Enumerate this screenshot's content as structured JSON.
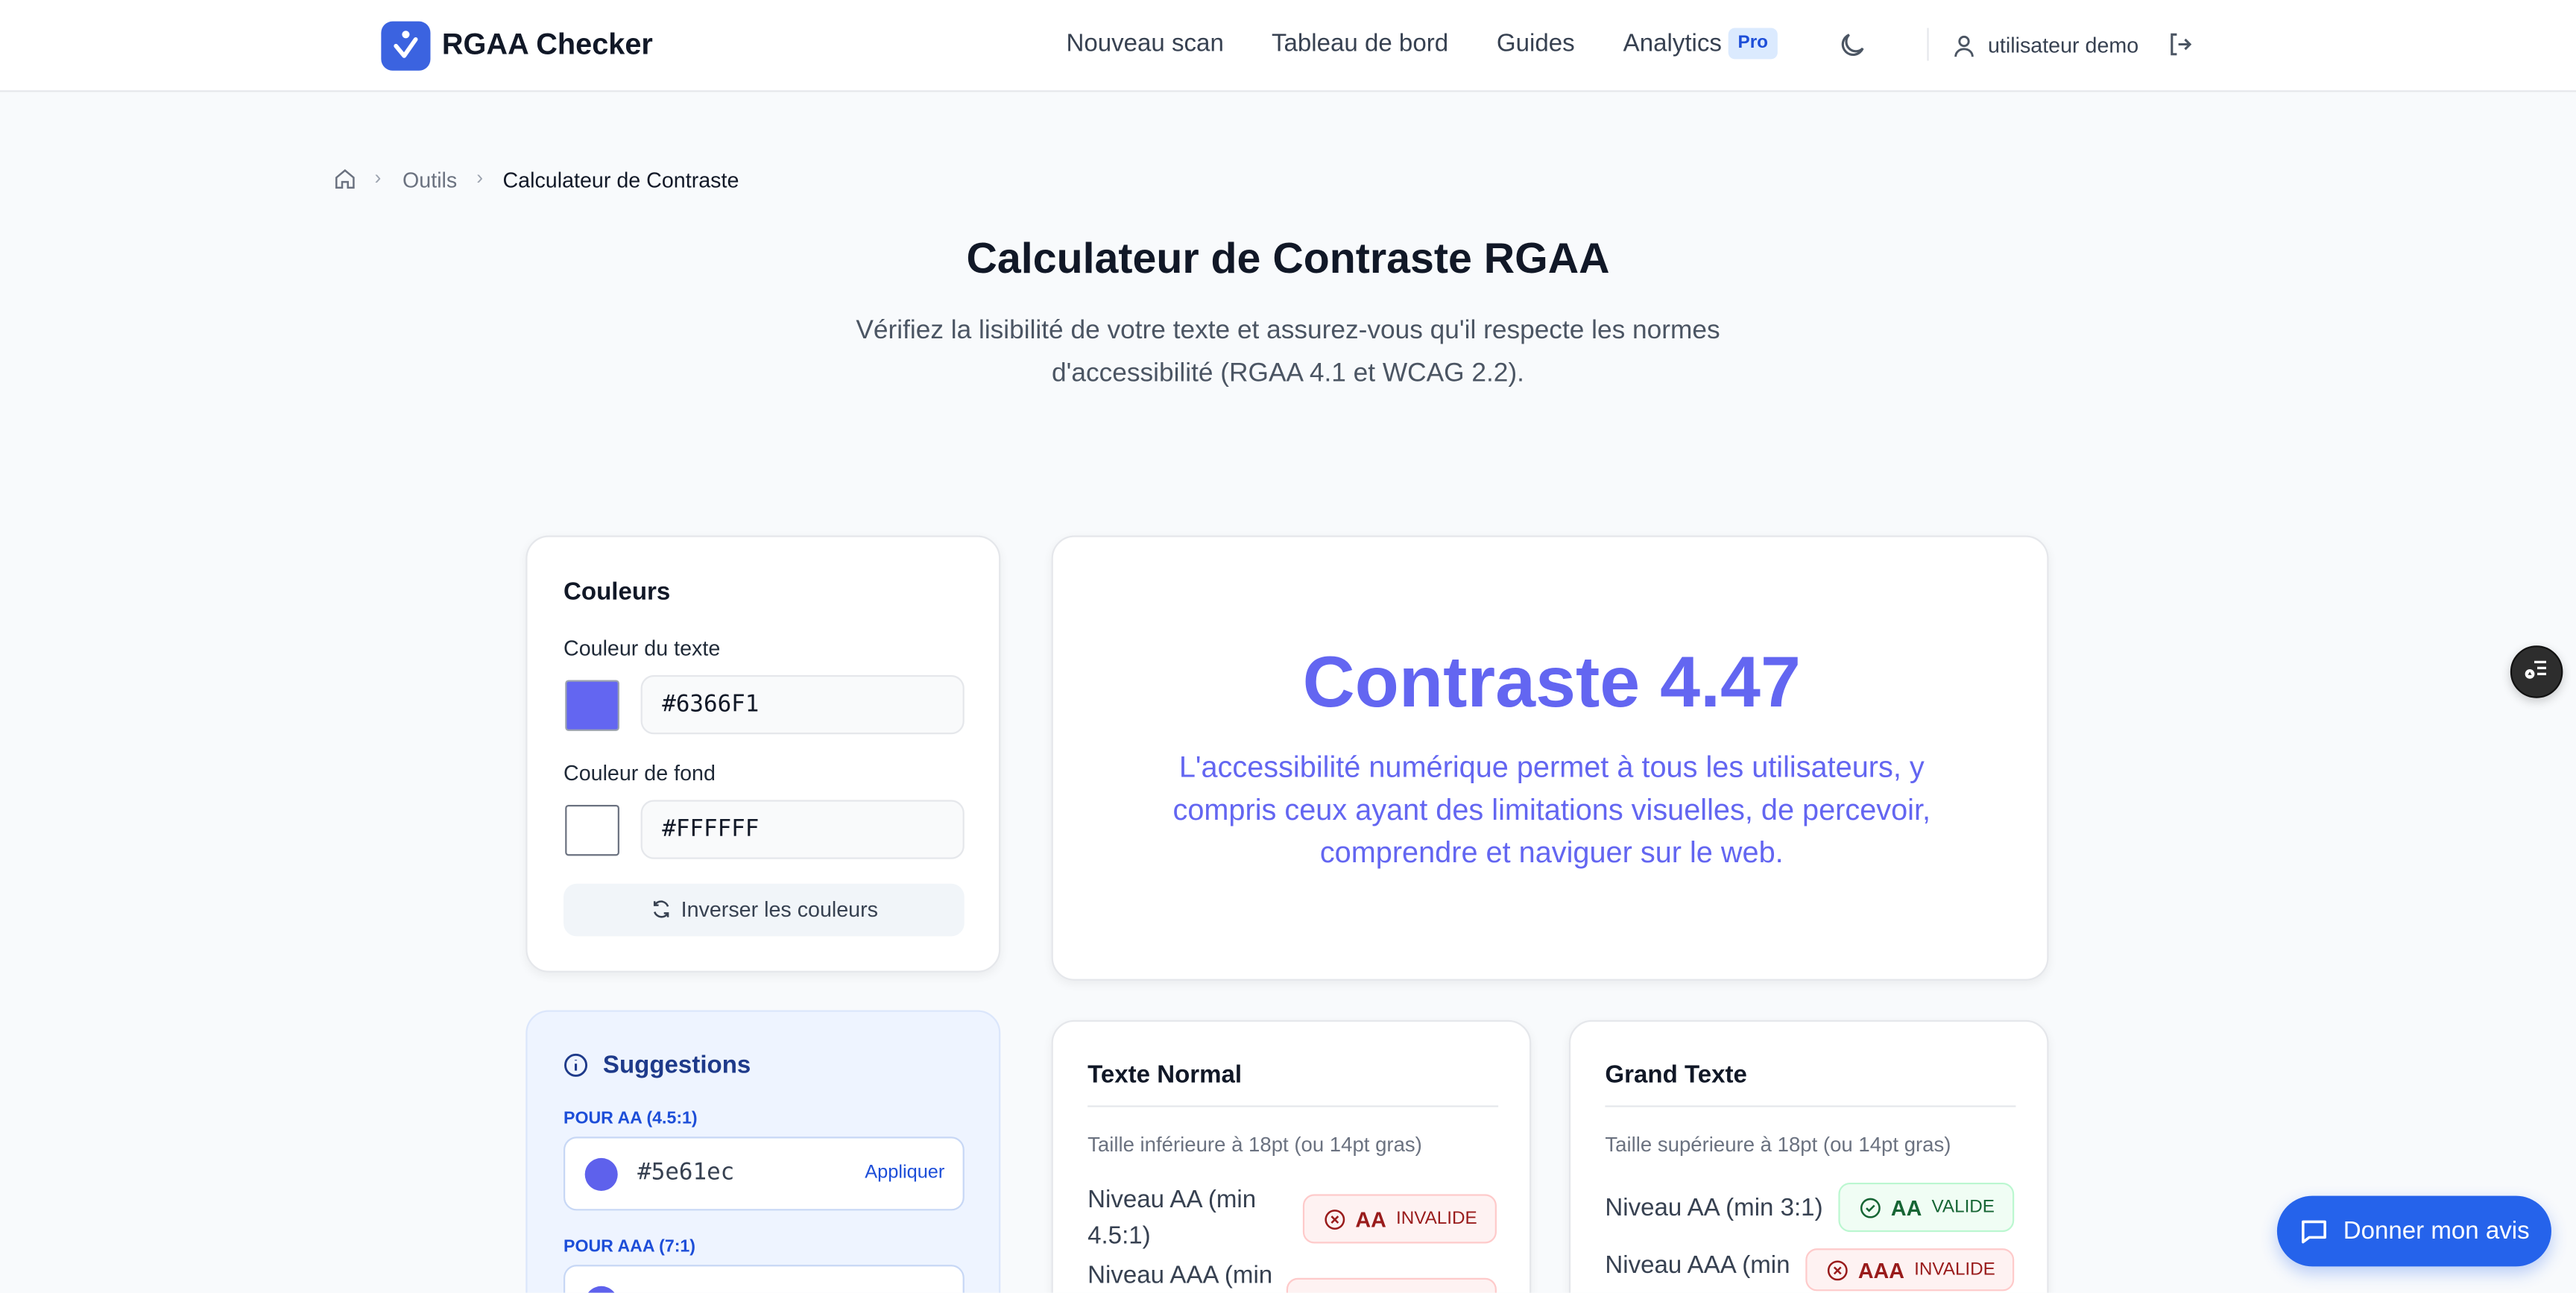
{
  "app": {
    "name": "RGAA Checker",
    "brand_color": "#3b63e0"
  },
  "nav": {
    "items": [
      "Nouveau scan",
      "Tableau de bord",
      "Guides",
      "Analytics"
    ],
    "pro_badge": "Pro",
    "user": "utilisateur demo"
  },
  "breadcrumb": {
    "items": [
      "Outils",
      "Calculateur de Contraste"
    ]
  },
  "page": {
    "title": "Calculateur de Contraste RGAA",
    "subtitle": "Vérifiez la lisibilité de votre texte et assurez-vous qu'il respecte les normes d'accessibilité (RGAA 4.1 et WCAG 2.2)."
  },
  "colors": {
    "title": "Couleurs",
    "text_label": "Couleur du texte",
    "text_value": "#6366F1",
    "bg_label": "Couleur de fond",
    "bg_value": "#FFFFFF",
    "swap_label": "Inverser les couleurs"
  },
  "suggestions": {
    "title": "Suggestions",
    "aa_label": "POUR AA (4.5:1)",
    "aa_value": "#5e61ec",
    "apply": "Appliquer",
    "aaa_label": "POUR AAA (7:1)"
  },
  "preview": {
    "title": "Contraste 4.47",
    "text": "L'accessibilité numérique permet à tous les utilisateurs, y compris ceux ayant des limitations visuelles, de percevoir, comprendre et naviguer sur le web.",
    "accent": "#6366f1"
  },
  "normal": {
    "title": "Texte Normal",
    "desc": "Taille inférieure à 18pt (ou 14pt gras)",
    "aa_label": "Niveau AA (min 4.5:1)",
    "aa_level": "AA",
    "aa_status": "INVALIDE",
    "aaa_label": "Niveau AAA (min"
  },
  "large": {
    "title": "Grand Texte",
    "desc": "Taille supérieure à 18pt (ou 14pt gras)",
    "aa_label": "Niveau AA (min 3:1)",
    "aa_level": "AA",
    "aa_status": "VALIDE",
    "aaa_label": "Niveau AAA (min",
    "aaa_level": "AAA",
    "aaa_status": "INVALIDE"
  },
  "feedback": {
    "label": "Donner mon avis"
  }
}
